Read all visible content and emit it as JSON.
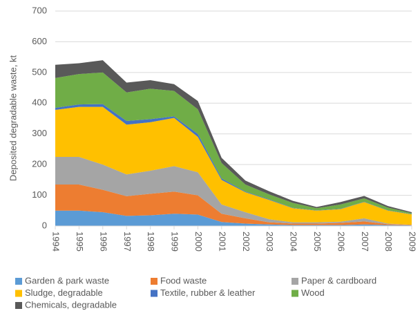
{
  "chart_data": {
    "type": "stacked-area",
    "y_label": "Deposited degradable waste, kt",
    "categories": [
      "1994",
      "1995",
      "1996",
      "1997",
      "1998",
      "1999",
      "2000",
      "2001",
      "2002",
      "2003",
      "2004",
      "2005",
      "2006",
      "2007",
      "2008",
      "2009"
    ],
    "ylim": [
      0,
      700
    ],
    "yticks": [
      0,
      100,
      200,
      300,
      400,
      500,
      600,
      700
    ],
    "grid": true,
    "series": [
      {
        "name": "Garden & park waste",
        "color": "#5b9bd5",
        "values": [
          50,
          50,
          45,
          33,
          35,
          40,
          37,
          13,
          8,
          5,
          3,
          3,
          3,
          5,
          3,
          2
        ]
      },
      {
        "name": "Food waste",
        "color": "#ed7d31",
        "values": [
          85,
          85,
          73,
          64,
          70,
          72,
          63,
          27,
          17,
          7,
          5,
          5,
          7,
          10,
          3,
          1
        ]
      },
      {
        "name": "Paper & cardboard",
        "color": "#a5a5a5",
        "values": [
          90,
          90,
          82,
          71,
          75,
          83,
          75,
          30,
          20,
          10,
          4,
          4,
          4,
          10,
          2,
          1
        ]
      },
      {
        "name": "Sludge, degradable",
        "color": "#ffc000",
        "values": [
          153,
          163,
          188,
          162,
          158,
          157,
          115,
          80,
          65,
          63,
          46,
          38,
          41,
          53,
          42,
          34
        ]
      },
      {
        "name": "Textile, rubber & leather",
        "color": "#4472c4",
        "values": [
          7,
          8,
          9,
          12,
          10,
          5,
          10,
          5,
          2,
          2,
          1,
          1,
          1,
          1,
          1,
          1
        ]
      },
      {
        "name": "Wood",
        "color": "#70ad47",
        "values": [
          97,
          99,
          103,
          93,
          99,
          83,
          80,
          50,
          23,
          16,
          16,
          7,
          14,
          11,
          9,
          3
        ]
      },
      {
        "name": "Chemicals, degradable",
        "color": "#595959",
        "values": [
          43,
          35,
          40,
          32,
          28,
          22,
          27,
          17,
          13,
          10,
          7,
          4,
          8,
          8,
          5,
          3
        ]
      }
    ]
  }
}
